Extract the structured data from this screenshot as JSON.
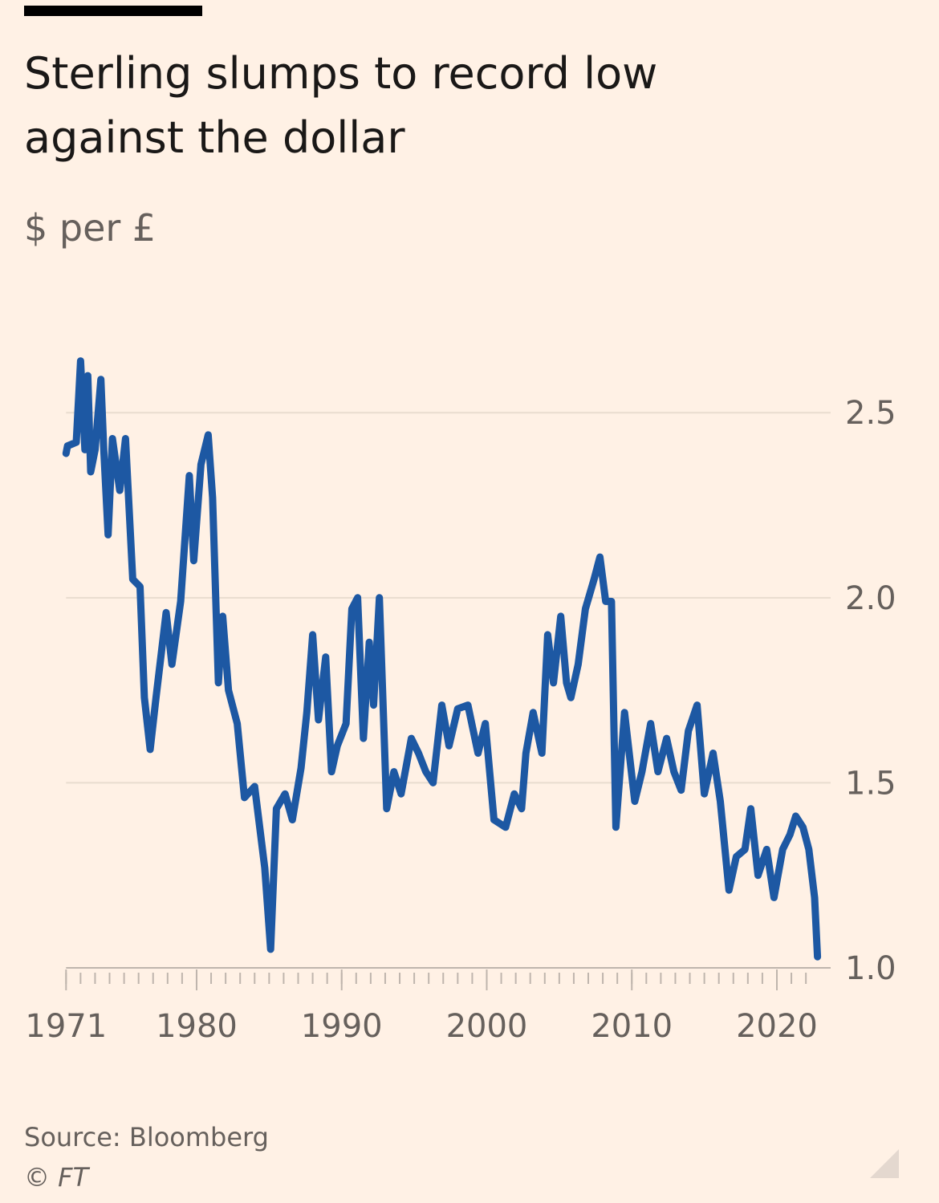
{
  "chart_data": {
    "type": "line",
    "title": [
      "Sterling slumps to record low",
      "against the dollar"
    ],
    "subtitle": "$ per £",
    "source": "Source: Bloomberg",
    "credit": "© FT",
    "xlim": [
      1971,
      2022.8
    ],
    "xticks": [
      1971,
      1980,
      1990,
      2000,
      2010,
      2020
    ],
    "xminorticks": [
      1971,
      1972,
      1973,
      1974,
      1975,
      1976,
      1977,
      1978,
      1979,
      1980,
      1981,
      1982,
      1983,
      1984,
      1985,
      1986,
      1987,
      1988,
      1989,
      1990,
      1991,
      1992,
      1993,
      1994,
      1995,
      1996,
      1997,
      1998,
      1999,
      2000,
      2001,
      2002,
      2003,
      2004,
      2005,
      2006,
      2007,
      2008,
      2009,
      2010,
      2011,
      2012,
      2013,
      2014,
      2015,
      2016,
      2017,
      2018,
      2019,
      2020,
      2021,
      2022
    ],
    "ylim": [
      1.0,
      2.7
    ],
    "yticks": [
      {
        "value": 1.0,
        "label": "1.0"
      },
      1.5,
      {
        "value": 2.0,
        "label": "2.0"
      },
      2.5
    ],
    "grid": true,
    "x": [
      1971.0,
      1971.1,
      1971.7,
      1972.0,
      1972.3,
      1972.5,
      1972.7,
      1973.0,
      1973.4,
      1973.6,
      1973.9,
      1974.2,
      1974.7,
      1975.1,
      1975.6,
      1976.1,
      1976.4,
      1976.8,
      1977.2,
      1977.9,
      1978.3,
      1978.9,
      1979.5,
      1979.8,
      1980.3,
      1980.8,
      1981.1,
      1981.5,
      1981.8,
      1982.2,
      1982.8,
      1983.3,
      1984.0,
      1984.7,
      1985.1,
      1985.5,
      1986.1,
      1986.6,
      1987.2,
      1987.6,
      1988.0,
      1988.4,
      1988.9,
      1989.3,
      1989.7,
      1990.3,
      1990.7,
      1991.1,
      1991.5,
      1991.9,
      1992.2,
      1992.6,
      1993.1,
      1993.6,
      1994.1,
      1994.8,
      1995.3,
      1995.8,
      1996.3,
      1996.9,
      1997.4,
      1998.0,
      1998.7,
      1999.4,
      1999.9,
      2000.5,
      2001.3,
      2001.9,
      2002.4,
      2002.7,
      2003.2,
      2003.8,
      2004.2,
      2004.6,
      2005.1,
      2005.5,
      2005.8,
      2006.3,
      2006.8,
      2007.4,
      2007.8,
      2008.2,
      2008.6,
      2008.9,
      2009.5,
      2010.2,
      2010.7,
      2011.3,
      2011.8,
      2012.4,
      2012.9,
      2013.4,
      2013.9,
      2014.5,
      2015.0,
      2015.6,
      2016.1,
      2016.7,
      2017.2,
      2017.8,
      2018.2,
      2018.7,
      2019.3,
      2019.8,
      2020.4,
      2020.9,
      2021.3,
      2021.8,
      2022.2,
      2022.6,
      2022.8
    ],
    "series": [
      {
        "name": "$ per £",
        "color": "#1d58a3",
        "values": [
          2.39,
          2.41,
          2.42,
          2.64,
          2.4,
          2.6,
          2.34,
          2.4,
          2.59,
          2.4,
          2.17,
          2.43,
          2.29,
          2.43,
          2.05,
          2.03,
          1.73,
          1.59,
          1.73,
          1.96,
          1.82,
          1.99,
          2.33,
          2.1,
          2.36,
          2.44,
          2.27,
          1.77,
          1.95,
          1.75,
          1.66,
          1.46,
          1.49,
          1.27,
          1.05,
          1.43,
          1.47,
          1.4,
          1.54,
          1.69,
          1.9,
          1.67,
          1.84,
          1.53,
          1.6,
          1.66,
          1.97,
          2.0,
          1.62,
          1.88,
          1.71,
          2.0,
          1.43,
          1.53,
          1.47,
          1.62,
          1.58,
          1.53,
          1.5,
          1.71,
          1.6,
          1.7,
          1.71,
          1.58,
          1.66,
          1.4,
          1.38,
          1.47,
          1.43,
          1.58,
          1.69,
          1.58,
          1.9,
          1.77,
          1.95,
          1.77,
          1.73,
          1.82,
          1.97,
          2.05,
          2.11,
          1.99,
          1.99,
          1.38,
          1.69,
          1.45,
          1.53,
          1.66,
          1.53,
          1.62,
          1.53,
          1.48,
          1.64,
          1.71,
          1.47,
          1.58,
          1.45,
          1.21,
          1.3,
          1.32,
          1.43,
          1.25,
          1.32,
          1.19,
          1.32,
          1.36,
          1.41,
          1.38,
          1.32,
          1.19,
          1.03
        ]
      }
    ]
  }
}
